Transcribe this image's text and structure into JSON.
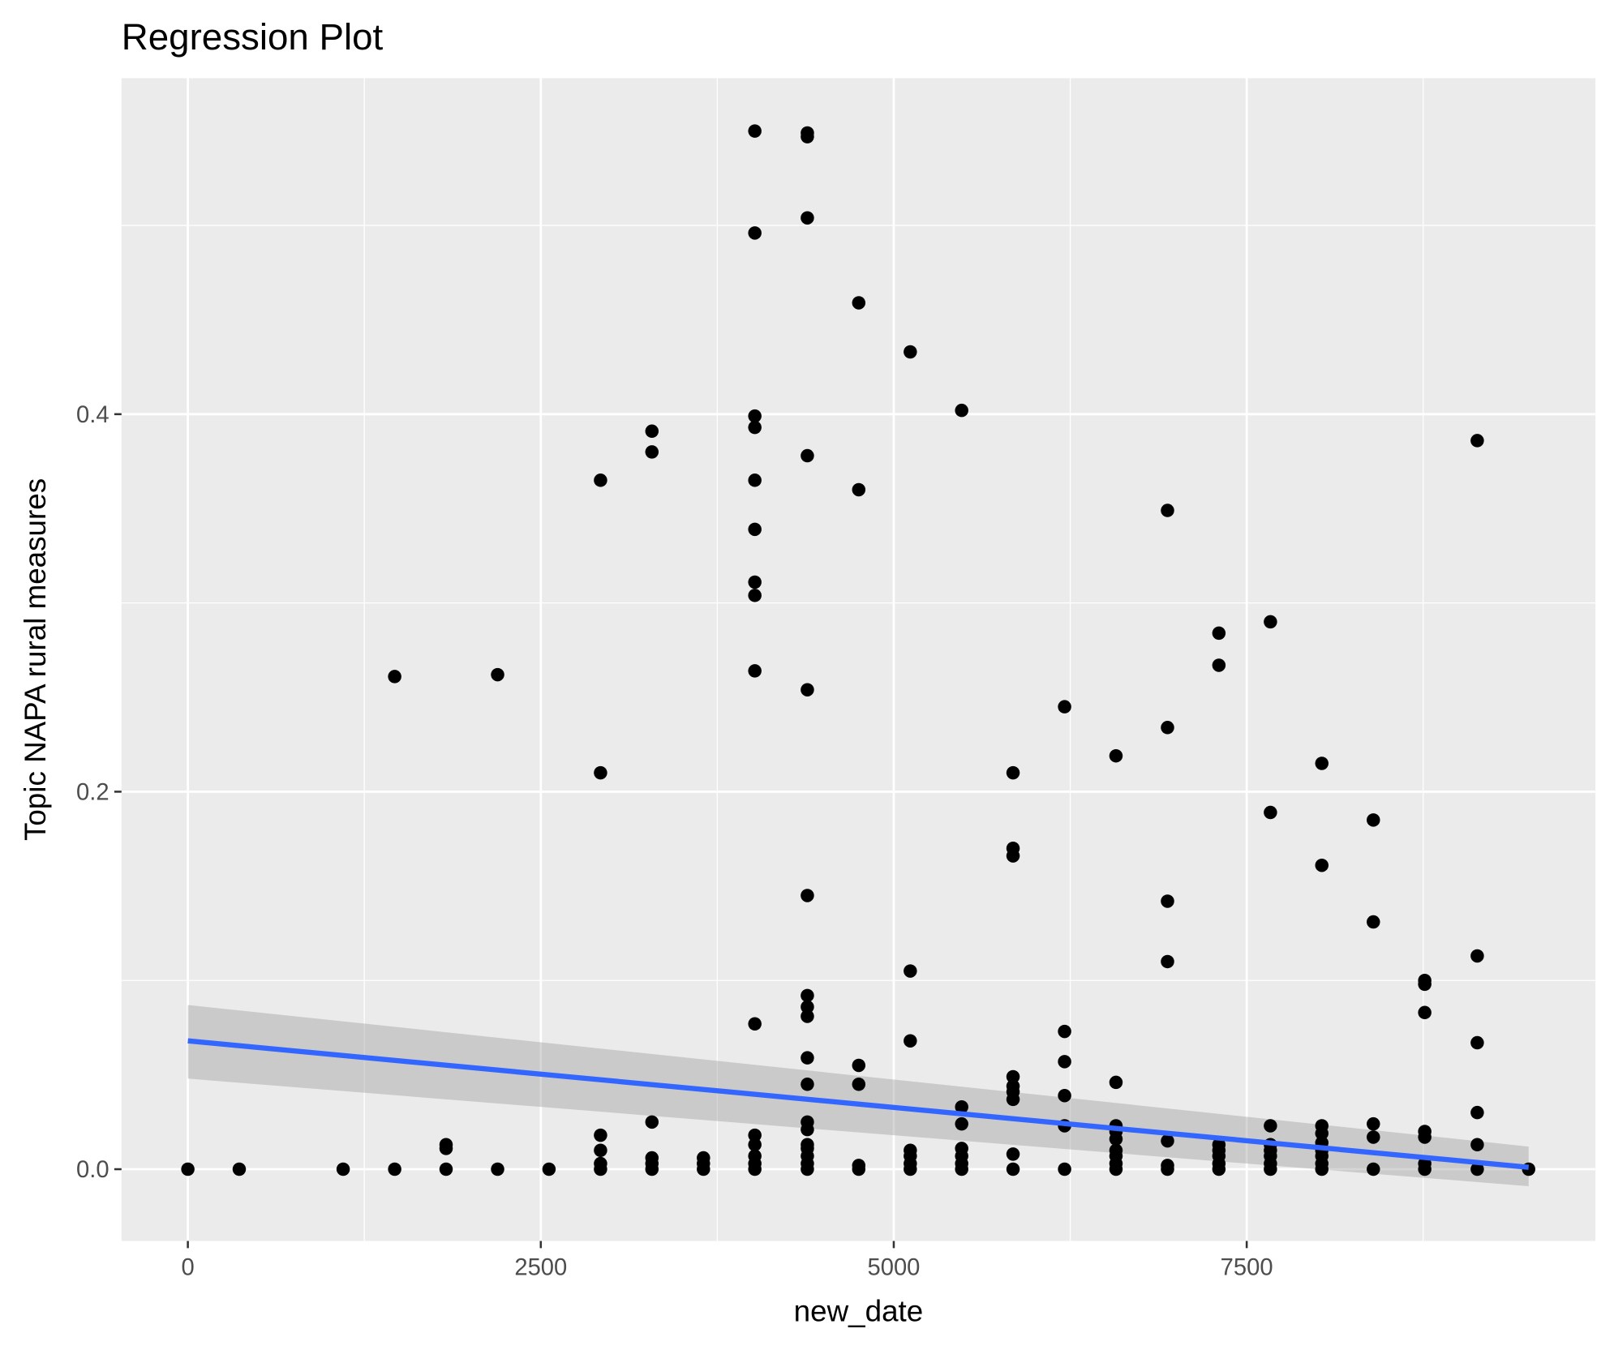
{
  "chart_data": {
    "type": "scatter",
    "title": "Regression Plot",
    "xlabel": "new_date",
    "ylabel": "Topic NAPA rural measures",
    "xlim": [
      -470,
      9970
    ],
    "ylim": [
      -0.038,
      0.578
    ],
    "x_ticks": [
      0,
      2500,
      5000,
      7500
    ],
    "x_tick_labels": [
      "0",
      "2500",
      "5000",
      "7500"
    ],
    "y_ticks": [
      0.0,
      0.2,
      0.4
    ],
    "y_tick_labels": [
      "0.0",
      "0.2",
      "0.4"
    ],
    "grid": true,
    "colors": {
      "panel": "#EBEBEB",
      "grid": "#FFFFFF",
      "point": "#000000",
      "line": "#3366FF",
      "band": "#999999"
    },
    "columns": [
      {
        "x": 0,
        "y": [
          0
        ]
      },
      {
        "x": 364,
        "y": [
          0
        ]
      },
      {
        "x": 1100,
        "y": [
          0
        ]
      },
      {
        "x": 1465,
        "y": [
          0,
          0.261
        ]
      },
      {
        "x": 1829,
        "y": [
          0,
          0.011,
          0.013
        ]
      },
      {
        "x": 2194,
        "y": [
          0,
          0.262
        ]
      },
      {
        "x": 2558,
        "y": [
          0
        ]
      },
      {
        "x": 2923,
        "y": [
          0,
          0.003,
          0.01,
          0.018,
          0.21,
          0.365
        ]
      },
      {
        "x": 3287,
        "y": [
          0,
          0.003,
          0.006,
          0.025,
          0.38,
          0.391
        ]
      },
      {
        "x": 3652,
        "y": [
          0,
          0.003,
          0.006
        ]
      },
      {
        "x": 4016,
        "y": [
          0,
          0.003,
          0.007,
          0.013,
          0.018,
          0.077,
          0.264,
          0.304,
          0.311,
          0.339,
          0.365,
          0.393,
          0.399,
          0.496,
          0.55
        ]
      },
      {
        "x": 4388,
        "y": [
          0,
          0.003,
          0.007,
          0.011,
          0.013,
          0.021,
          0.025,
          0.045,
          0.059,
          0.081,
          0.086,
          0.092,
          0.145,
          0.254,
          0.378,
          0.504,
          0.547,
          0.549
        ]
      },
      {
        "x": 4752,
        "y": [
          0,
          0.002,
          0.045,
          0.055,
          0.36,
          0.459
        ]
      },
      {
        "x": 5117,
        "y": [
          0,
          0.003,
          0.007,
          0.01,
          0.068,
          0.105,
          0.433
        ]
      },
      {
        "x": 5481,
        "y": [
          0,
          0.003,
          0.007,
          0.011,
          0.024,
          0.033,
          0.402
        ]
      },
      {
        "x": 5845,
        "y": [
          0,
          0.008,
          0.037,
          0.041,
          0.044,
          0.049,
          0.166,
          0.17,
          0.21
        ]
      },
      {
        "x": 6210,
        "y": [
          0,
          0.023,
          0.039,
          0.057,
          0.073,
          0.245
        ]
      },
      {
        "x": 6574,
        "y": [
          0,
          0.003,
          0.007,
          0.01,
          0.016,
          0.02,
          0.023,
          0.046,
          0.219
        ]
      },
      {
        "x": 6939,
        "y": [
          0,
          0.002,
          0.015,
          0.11,
          0.142,
          0.234,
          0.349
        ]
      },
      {
        "x": 7303,
        "y": [
          0,
          0.003,
          0.007,
          0.01,
          0.013,
          0.267,
          0.284
        ]
      },
      {
        "x": 7668,
        "y": [
          0,
          0.003,
          0.007,
          0.01,
          0.013,
          0.023,
          0.189,
          0.29
        ]
      },
      {
        "x": 8032,
        "y": [
          0,
          0.003,
          0.007,
          0.01,
          0.014,
          0.019,
          0.023,
          0.161,
          0.215
        ]
      },
      {
        "x": 8397,
        "y": [
          0,
          0.017,
          0.024,
          0.131,
          0.185
        ]
      },
      {
        "x": 8761,
        "y": [
          0,
          0.003,
          0.017,
          0.02,
          0.083,
          0.098,
          0.1
        ]
      },
      {
        "x": 9133,
        "y": [
          0,
          0.013,
          0.03,
          0.067,
          0.113,
          0.386
        ]
      },
      {
        "x": 9497,
        "y": [
          0
        ]
      }
    ],
    "regression": {
      "x": [
        0,
        9497
      ],
      "fit": [
        0.068,
        0.001
      ],
      "lower": [
        0.048,
        -0.009
      ],
      "upper": [
        0.087,
        0.012
      ]
    }
  }
}
